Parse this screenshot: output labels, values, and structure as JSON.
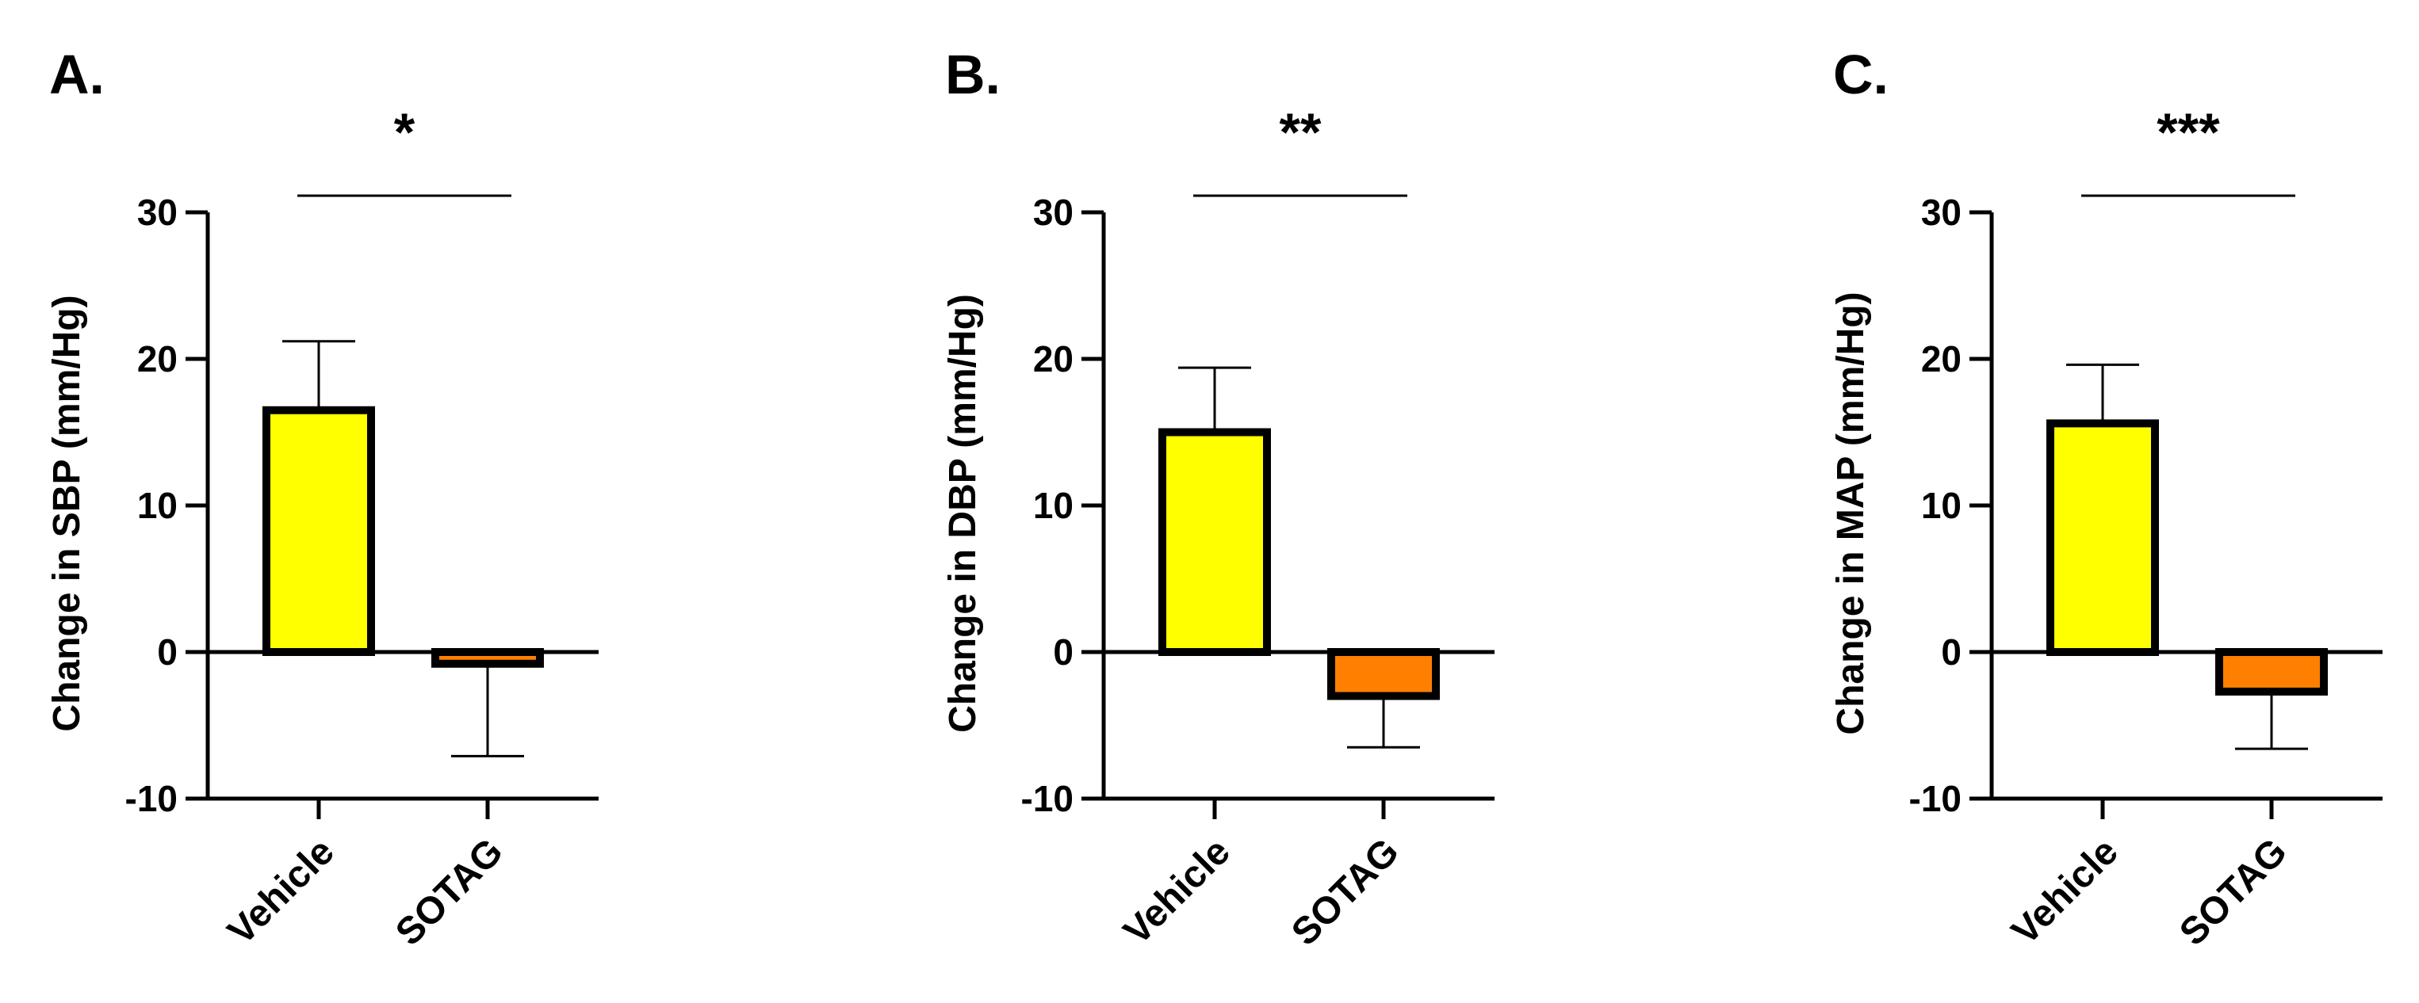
{
  "chart_data": [
    {
      "type": "bar",
      "panel_label": "A.",
      "categories": [
        "Vehicle",
        "SOTAG"
      ],
      "values": [
        16.5,
        -0.8
      ],
      "error_bars": [
        4.7,
        6.3
      ],
      "colors": [
        "#ffff00",
        "#ff8000"
      ],
      "ylabel": "Change in SBP (mm/Hg)",
      "ylim": [
        -10,
        30
      ],
      "yticks": [
        -10,
        0,
        10,
        20,
        30
      ],
      "significance": "*"
    },
    {
      "type": "bar",
      "panel_label": "B.",
      "categories": [
        "Vehicle",
        "SOTAG"
      ],
      "values": [
        15.0,
        -3.0
      ],
      "error_bars": [
        4.4,
        3.5
      ],
      "colors": [
        "#ffff00",
        "#ff8000"
      ],
      "ylabel": "Change in DBP (mm/Hg)",
      "ylim": [
        -10,
        30
      ],
      "yticks": [
        -10,
        0,
        10,
        20,
        30
      ],
      "significance": "**"
    },
    {
      "type": "bar",
      "panel_label": "C.",
      "categories": [
        "Vehicle",
        "SOTAG"
      ],
      "values": [
        15.6,
        -2.7
      ],
      "error_bars": [
        4.0,
        3.9
      ],
      "colors": [
        "#ffff00",
        "#ff8000"
      ],
      "ylabel": "Change in MAP (mm/Hg)",
      "ylim": [
        -10,
        30
      ],
      "yticks": [
        -10,
        0,
        10,
        20,
        30
      ],
      "significance": "***"
    }
  ]
}
